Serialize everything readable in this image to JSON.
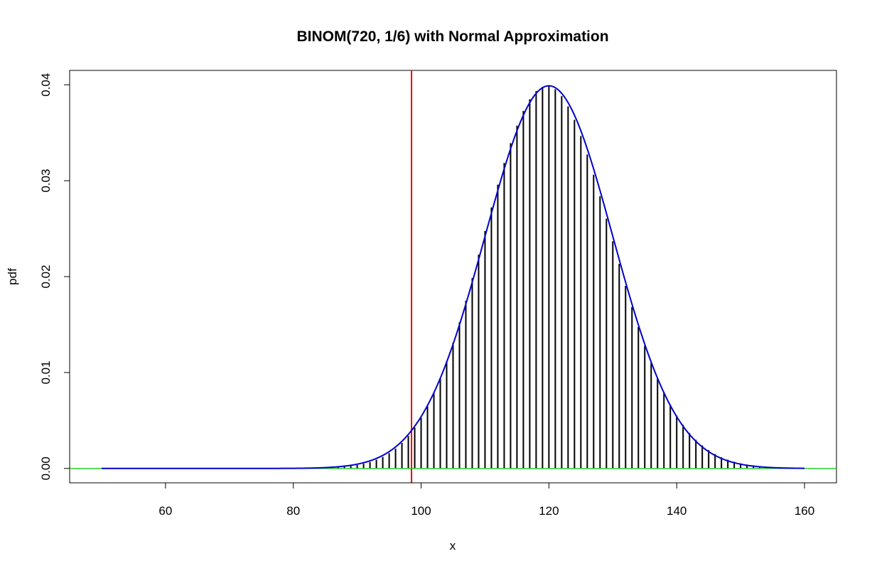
{
  "chart_data": {
    "type": "bar",
    "title": "BINOM(720, 1/6) with Normal Approximation",
    "xlabel": "x",
    "ylabel": "pdf",
    "xlim": [
      45,
      165
    ],
    "ylim": [
      -0.0015,
      0.0415
    ],
    "x_ticks": [
      60,
      80,
      100,
      120,
      140,
      160
    ],
    "x_tick_labels": [
      "60",
      "80",
      "100",
      "120",
      "140",
      "160"
    ],
    "y_ticks": [
      0.0,
      0.01,
      0.02,
      0.03,
      0.04
    ],
    "y_tick_labels": [
      "0.00",
      "0.01",
      "0.02",
      "0.03",
      "0.04"
    ],
    "grid": false,
    "series": [
      {
        "type": "bar",
        "distribution": "binomial",
        "n": 720,
        "p": 0.16666666666666666,
        "x_range": [
          50,
          160
        ],
        "color": "#000000"
      },
      {
        "type": "line",
        "distribution": "normal",
        "mean": 120,
        "sd": 10,
        "x_range": [
          50,
          160
        ],
        "color": "#0000cc"
      }
    ],
    "annotations": [
      {
        "type": "vline",
        "x": 98.5,
        "color": "#ee0000"
      },
      {
        "type": "hline",
        "y": 0,
        "color": "#00cc00"
      }
    ]
  }
}
